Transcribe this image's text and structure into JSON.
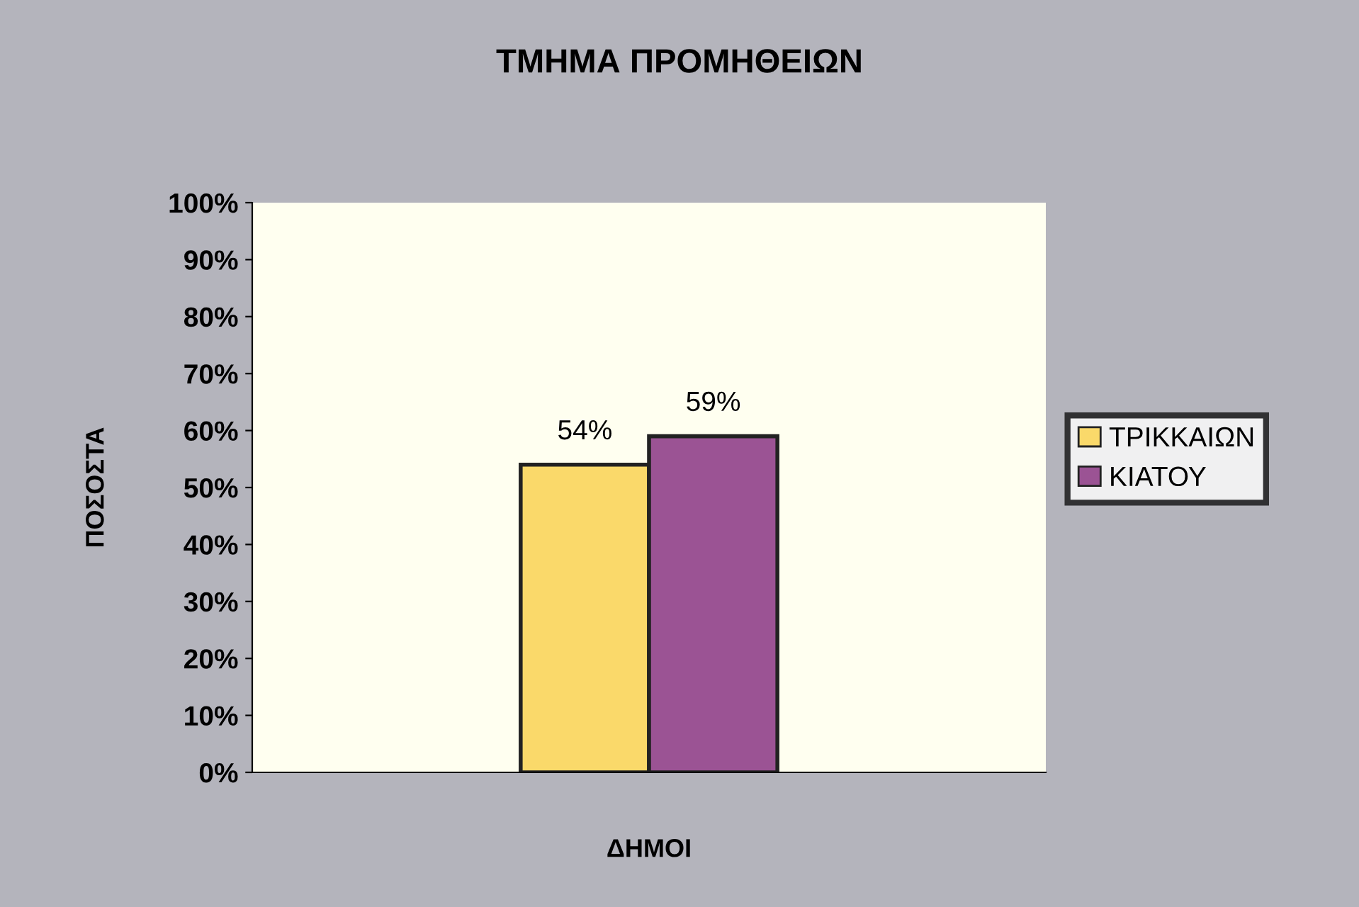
{
  "chart_data": {
    "type": "bar",
    "title": "ΤΜΗΜΑ ΠΡΟΜΗΘΕΙΩΝ",
    "xlabel": "ΔΗΜΟΙ",
    "ylabel": "ΠΟΣΟΣΤΑ",
    "categories": [
      null
    ],
    "series": [
      {
        "name": "ΤΡΙΚΚΑΙΩΝ",
        "color": "#fad96a",
        "values": [
          54
        ],
        "value_labels": [
          "54%"
        ]
      },
      {
        "name": "ΚΙΑΤΟΥ",
        "color": "#9b5394",
        "values": [
          59
        ],
        "value_labels": [
          "59%"
        ]
      }
    ],
    "ylim": [
      0,
      100
    ],
    "yticks": [
      {
        "value": 0,
        "label": "0%"
      },
      {
        "value": 10,
        "label": "10%"
      },
      {
        "value": 20,
        "label": "20%"
      },
      {
        "value": 30,
        "label": "30%"
      },
      {
        "value": 40,
        "label": "40%"
      },
      {
        "value": 50,
        "label": "50%"
      },
      {
        "value": 60,
        "label": "60%"
      },
      {
        "value": 70,
        "label": "70%"
      },
      {
        "value": 80,
        "label": "80%"
      },
      {
        "value": 90,
        "label": "90%"
      },
      {
        "value": 100,
        "label": "100%"
      }
    ],
    "grid": false,
    "legend": "right"
  }
}
